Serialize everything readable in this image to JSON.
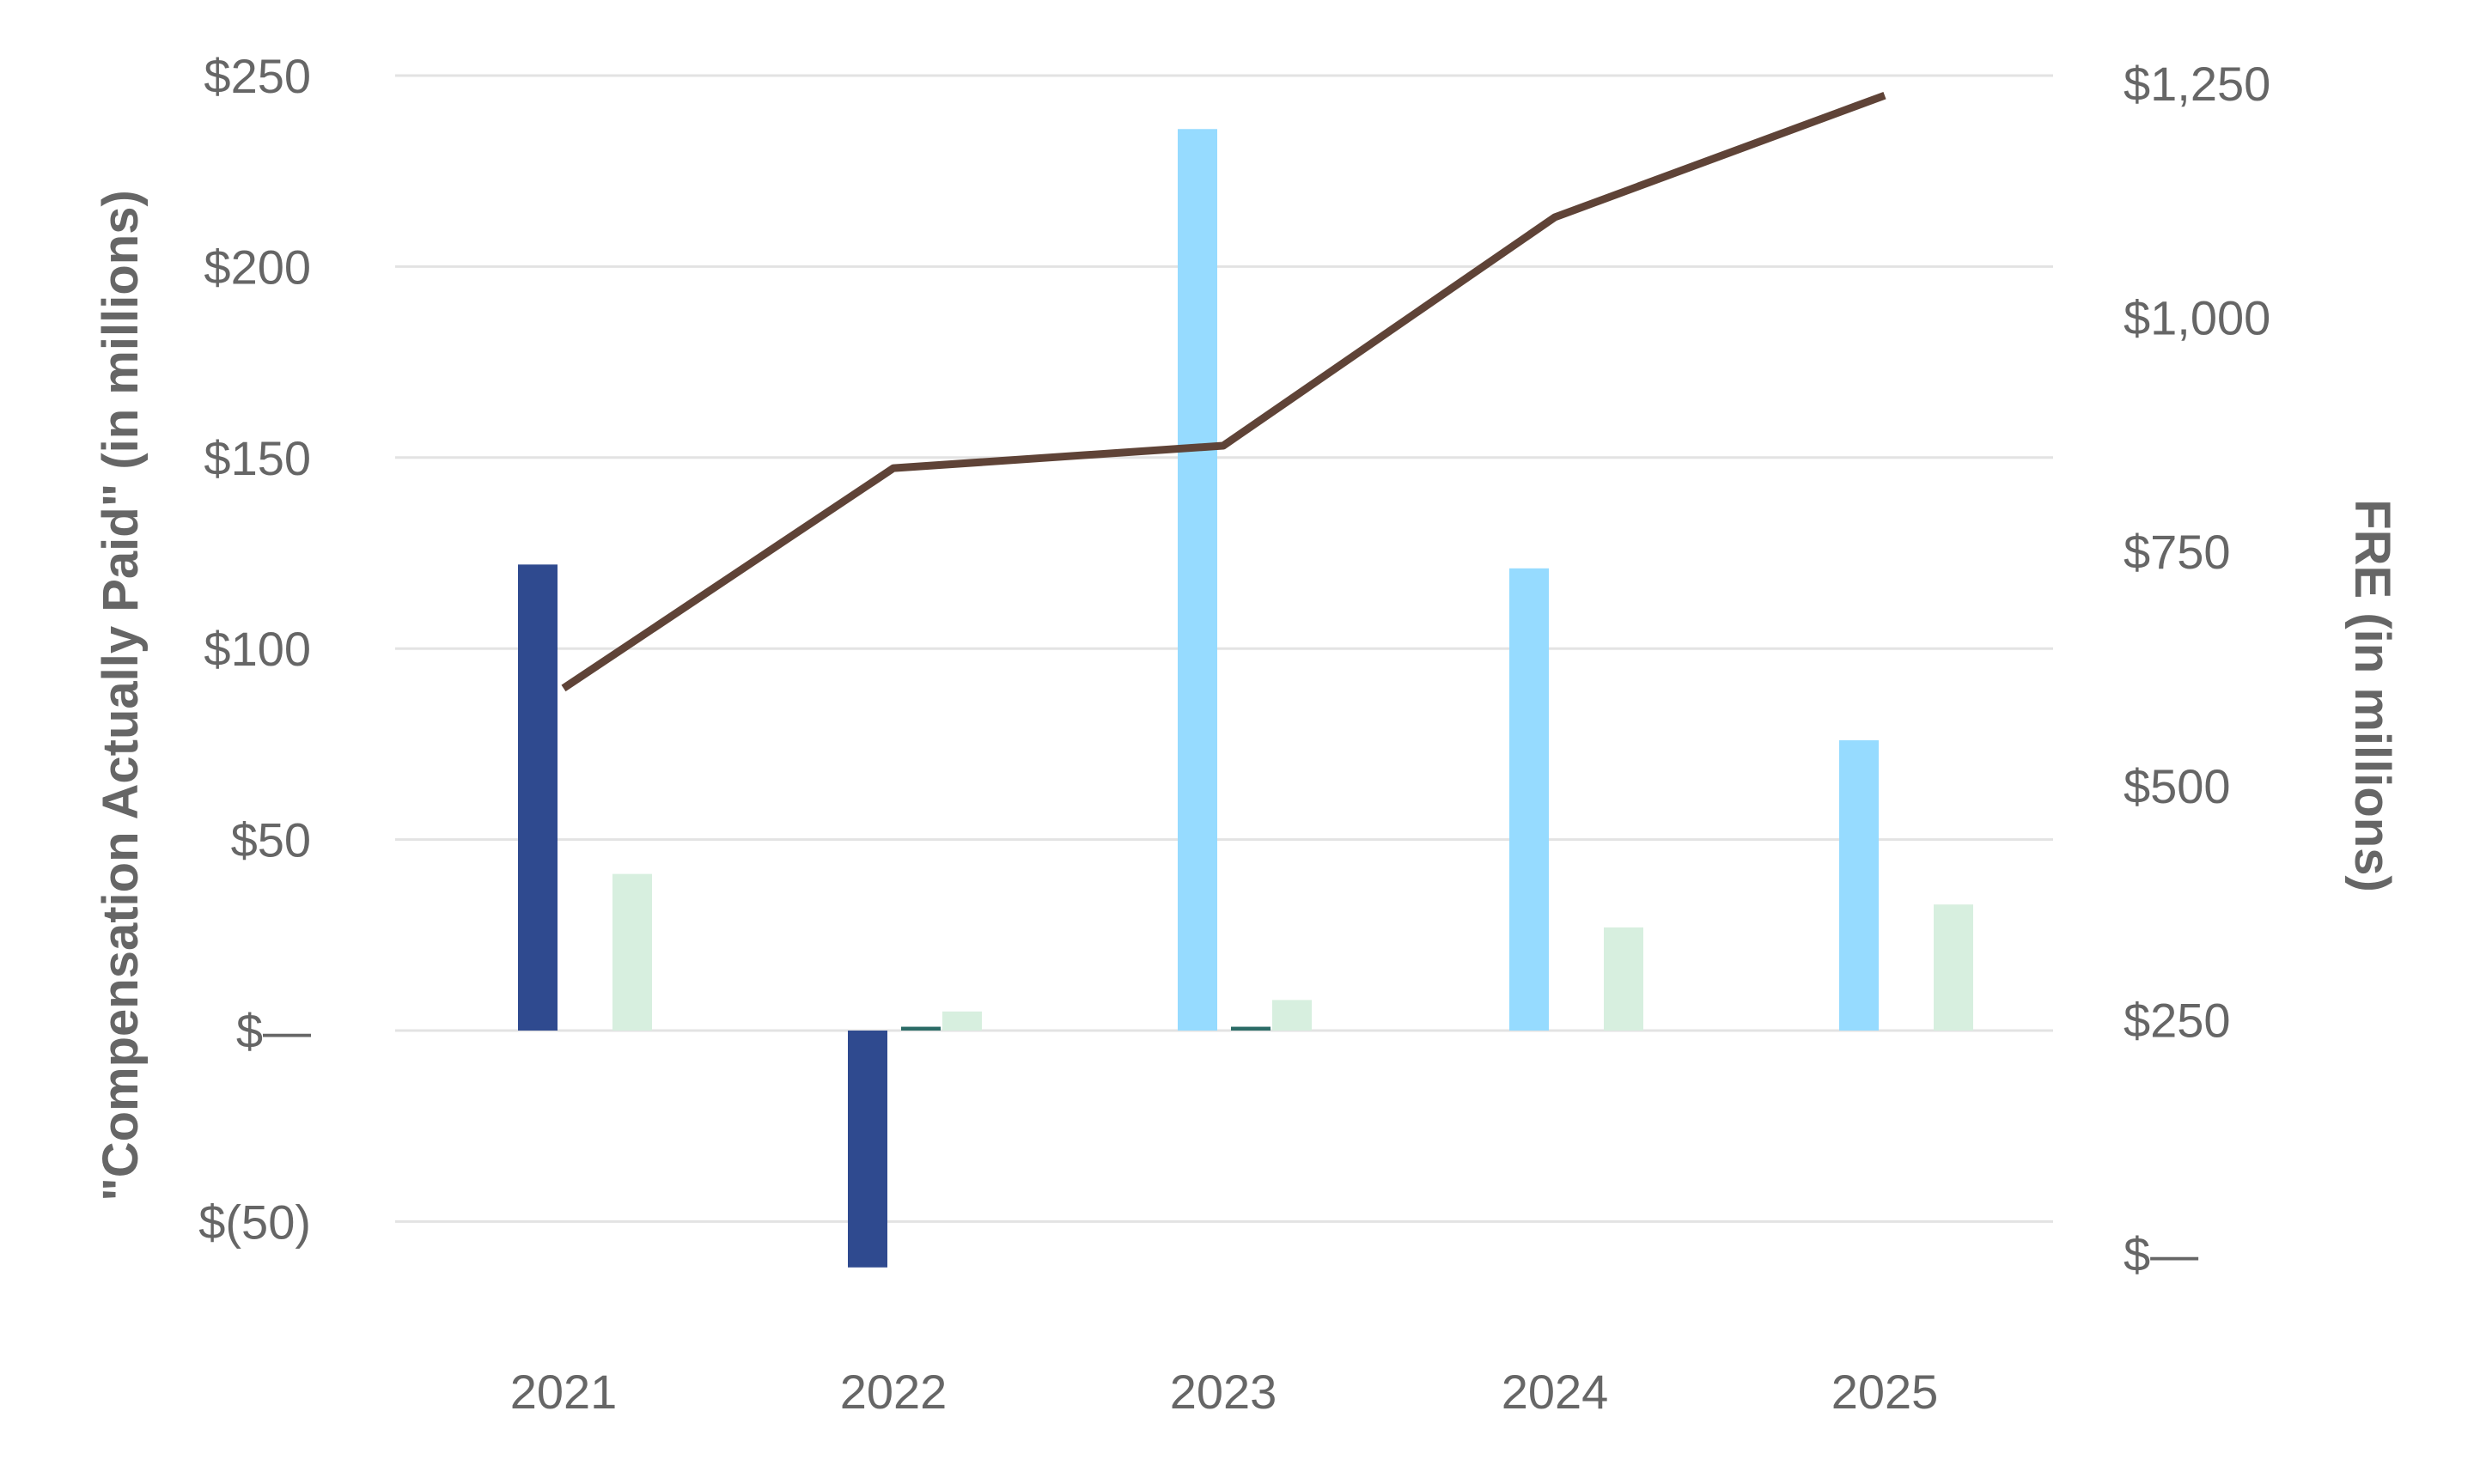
{
  "chart_data": {
    "type": "bar",
    "categories": [
      "2021",
      "2022",
      "2023",
      "2024",
      "2025"
    ],
    "series": [
      {
        "values": [
          122,
          -62,
          null,
          null,
          null
        ],
        "color": "#2f4a8f",
        "axis": "left"
      },
      {
        "values": [
          null,
          1,
          1,
          null,
          null
        ],
        "color": "#2b6b66",
        "axis": "left"
      },
      {
        "values": [
          null,
          null,
          236,
          121,
          76
        ],
        "color": "#96dbff",
        "axis": "left"
      },
      {
        "values": [
          41,
          5,
          8,
          27,
          33
        ],
        "color": "#d7efdf",
        "axis": "left"
      },
      {
        "type": "line",
        "values": [
          604,
          839,
          863,
          1107,
          1237
        ],
        "color": "#5f4337",
        "axis": "right"
      }
    ],
    "ylabel": "\"Compensation Actually Paid\" (in millions)",
    "y2label": "FRE  (in millions)",
    "ylim": [
      -70,
      250
    ],
    "y2lim": [
      -15,
      1250
    ],
    "yticks": [
      {
        "value": 250,
        "label": "$250"
      },
      {
        "value": 200,
        "label": "$200"
      },
      {
        "value": 150,
        "label": "$150"
      },
      {
        "value": 100,
        "label": "$100"
      },
      {
        "value": 50,
        "label": "$50"
      },
      {
        "value": 0,
        "label": "$—"
      },
      {
        "value": -50,
        "label": "$(50)"
      }
    ],
    "y2ticks": [
      {
        "value": 1250,
        "label": "$1,250"
      },
      {
        "value": 1000,
        "label": "$1,000"
      },
      {
        "value": 750,
        "label": "$750"
      },
      {
        "value": 500,
        "label": "$500"
      },
      {
        "value": 250,
        "label": "$250"
      },
      {
        "value": 0,
        "label": "$—"
      }
    ],
    "grid": true,
    "gridlines": [
      250,
      200,
      150,
      100,
      50,
      0,
      -50
    ]
  }
}
